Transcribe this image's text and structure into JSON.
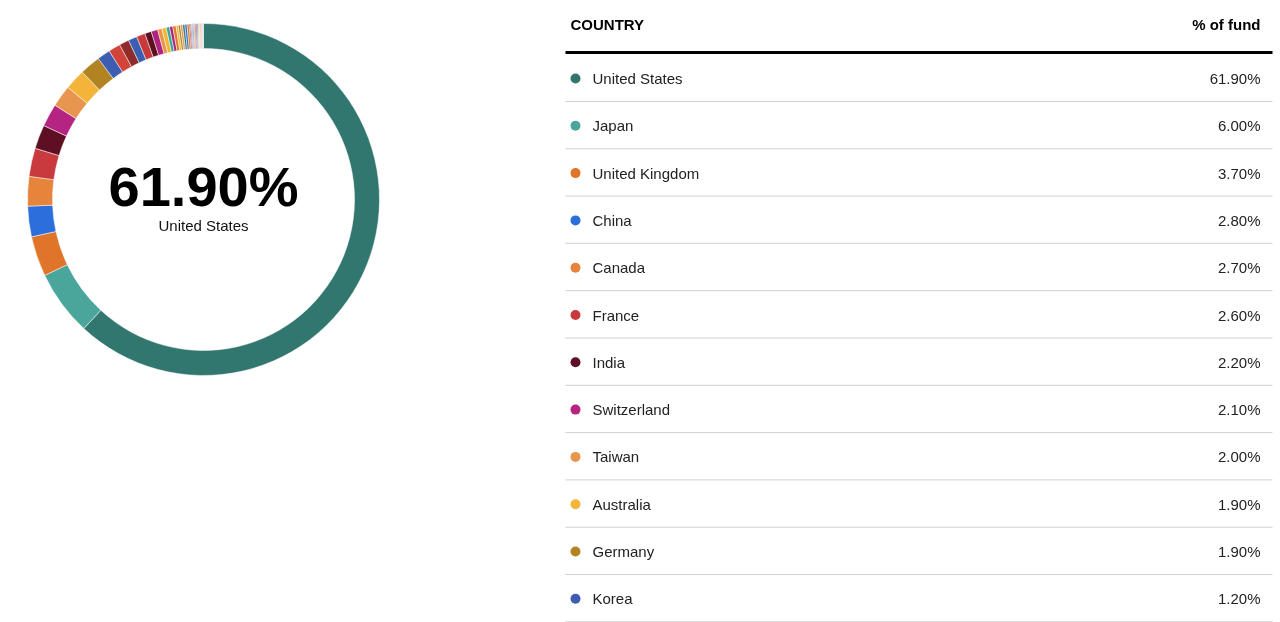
{
  "chart_data": {
    "type": "donut",
    "categories": [
      "United States",
      "Japan",
      "United Kingdom",
      "China",
      "Canada",
      "France",
      "India",
      "Switzerland",
      "Taiwan",
      "Australia",
      "Germany",
      "Korea",
      null,
      null,
      null,
      null,
      null,
      null,
      null,
      null,
      null,
      null,
      null,
      null,
      null,
      null,
      null,
      null,
      null,
      null,
      null,
      null,
      null,
      null,
      null,
      null,
      null,
      null,
      null,
      null,
      null,
      null
    ],
    "values": [
      61.9,
      6.0,
      3.7,
      2.8,
      2.7,
      2.6,
      2.2,
      2.1,
      2.0,
      1.9,
      1.9,
      1.2,
      1.1,
      0.9,
      0.8,
      0.8,
      0.6,
      0.6,
      0.4,
      0.4,
      0.3,
      0.3,
      0.3,
      0.2,
      0.2,
      0.2,
      0.2,
      0.2,
      0.2,
      0.1,
      0.1,
      0.1,
      0.1,
      0.1,
      0.1,
      0.1,
      0.1,
      0.1,
      0.1,
      0.1,
      0.1,
      0.1
    ],
    "colors": [
      "#32776f",
      "#4aa59b",
      "#e0742a",
      "#2c6fdc",
      "#e6843c",
      "#c93a3f",
      "#5e0f23",
      "#b52480",
      "#e8964e",
      "#f4b43a",
      "#b28322",
      "#3d5db3",
      "#d0443a",
      "#8e2b2b",
      "#3b5fb0",
      "#c8393a",
      "#5c1020",
      "#b0237e",
      "#e8944a",
      "#f2b632",
      "#2fa89a",
      "#b0237e",
      "#e07b2c",
      "#f2b632",
      "#b08224",
      "#e8944a",
      "#2f7b73",
      "#2a6dd6",
      "#e07b2c",
      "#5c1020",
      "#c8393a",
      "#4aa39a",
      "#3b5fb0",
      "#e8873a",
      "#b0237e",
      "#8e2b2b",
      "#2a6dd6",
      "#f2b632",
      "#a8d0e0",
      "#e8944a",
      "#d8a0c0",
      "#c0c0c0"
    ],
    "value_labels": [
      "61.90%",
      "6.00%",
      "3.70%",
      "2.80%",
      "2.70%",
      "2.60%",
      "2.20%",
      "2.10%",
      "2.00%",
      "1.90%",
      "1.90%",
      "1.20%",
      null,
      null,
      null,
      null,
      null,
      null,
      null,
      null,
      null,
      null,
      null,
      null,
      null,
      null,
      null,
      null,
      null,
      null,
      null,
      null,
      null,
      null,
      null,
      null,
      null,
      null,
      null,
      null,
      null,
      null
    ],
    "legend_title": "COUNTRY",
    "legend": "right",
    "annotations": [
      "61.90%",
      "United States",
      "% of fund"
    ]
  }
}
